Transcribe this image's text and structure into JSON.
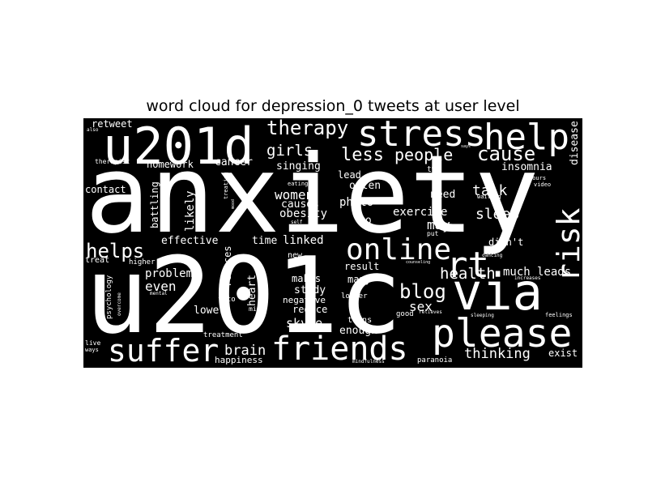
{
  "title": "word cloud for depression_0 tweets at user level",
  "colors": {
    "background": "#ffffff",
    "cloud_background": "#000000",
    "word_fill": "#ffffff"
  },
  "words": {
    "anxiety": "anxiety",
    "u201c": "u201c",
    "u201d": "u201d",
    "stress": "stress",
    "help": "help",
    "please": "please",
    "via": "via",
    "friends": "friends",
    "suffer": "suffer",
    "online": "online",
    "rt": "rt",
    "risk": "risk",
    "therapy": "therapy",
    "less": "less",
    "people": "people",
    "cause": "cause",
    "insomnia": "insomnia",
    "disease": "disease",
    "girls": "girls",
    "singing": "singing",
    "helps": "helps",
    "blog": "blog",
    "health": "health",
    "much": "much",
    "leads": "leads",
    "talk": "talk",
    "sleep": "sleep",
    "exercise": "exercise",
    "may": "may",
    "need": "need",
    "two": "two",
    "women": "women",
    "causes": "causes",
    "obesity": "obesity",
    "photo": "photo",
    "often": "often",
    "lead": "lead",
    "go": "go",
    "linked": "linked",
    "time": "time",
    "effective": "effective",
    "likely": "likely",
    "battling": "battling",
    "contact": "contact",
    "homework": "homework",
    "retweet": "retweet",
    "therapist": "therapist",
    "cancer": "cancer",
    "problems": "problems",
    "even": "even",
    "lower": "lower",
    "reduces": "reduces",
    "heart": "heart",
    "makes": "makes",
    "study": "study",
    "negative": "negative",
    "reduce": "reduce",
    "skype": "skype",
    "result": "result",
    "many": "many",
    "enough": "enough",
    "sex": "sex",
    "thinking": "thinking",
    "exist": "exist",
    "brain": "brain",
    "happiness": "happiness",
    "paranoia": "paranoia",
    "didnt": "didn't",
    "treat": "treat",
    "psychology": "psychology",
    "higher": "higher",
    "treatment": "treatment",
    "new": "new",
    "longer": "longer",
    "teens": "teens",
    "good": "good",
    "relieves": "relieves",
    "feelings": "feelings",
    "eating": "eating",
    "waiting": "waiting",
    "hours": "hours",
    "video": "video",
    "dancing": "dancing",
    "counseling": "counseling",
    "put": "put",
    "mind": "mind",
    "foto": "foto",
    "live": "live",
    "ways": "ways",
    "also": "also",
    "says": "says",
    "self": "self",
    "sleeping": "sleeping",
    "mindfulness": "mindfulness",
    "increases": "increases",
    "mental": "mental",
    "treating": "treating",
    "mood": "mood",
    "overcome": "overcome"
  }
}
